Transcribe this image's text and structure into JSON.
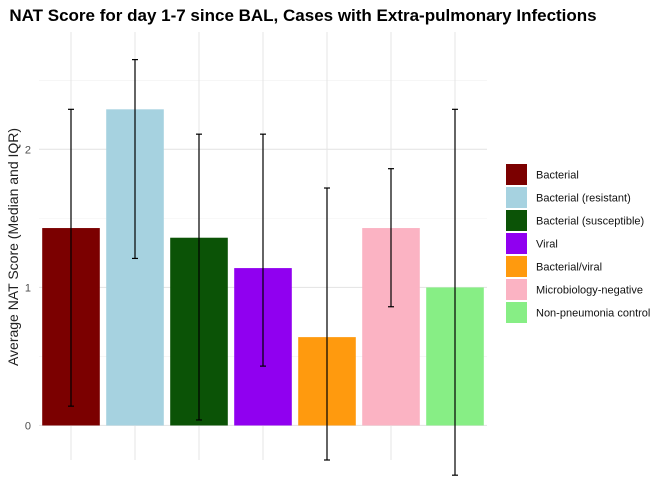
{
  "chart_data": {
    "type": "bar",
    "title": "NAT Score for day 1-7 since BAL, Cases with Extra-pulmonary Infections",
    "xlabel": "",
    "ylabel": "Average NAT Score (Median and IQR)",
    "ylim": [
      -0.25,
      2.85
    ],
    "yticks": [
      0,
      1,
      2
    ],
    "grid": true,
    "legend_position": "right",
    "series": [
      {
        "name": "Bacterial",
        "value": 1.43,
        "err_low": 0.14,
        "err_high": 2.29,
        "color": "#7B0000"
      },
      {
        "name": "Bacterial (resistant)",
        "value": 2.29,
        "err_low": 1.21,
        "err_high": 2.65,
        "color": "#A6D2E0"
      },
      {
        "name": "Bacterial (susceptible)",
        "value": 1.36,
        "err_low": 0.04,
        "err_high": 2.11,
        "color": "#0B5306"
      },
      {
        "name": "Viral",
        "value": 1.14,
        "err_low": 0.43,
        "err_high": 2.11,
        "color": "#9000F0"
      },
      {
        "name": "Bacterial/viral",
        "value": 0.64,
        "err_low": -0.25,
        "err_high": 1.72,
        "color": "#FF9A0E"
      },
      {
        "name": "Microbiology-negative",
        "value": 1.43,
        "err_low": 0.86,
        "err_high": 1.86,
        "color": "#FBB3C3"
      },
      {
        "name": "Non-pneumonia control",
        "value": 1.0,
        "err_low": -0.36,
        "err_high": 2.29,
        "color": "#87EE85"
      }
    ]
  }
}
